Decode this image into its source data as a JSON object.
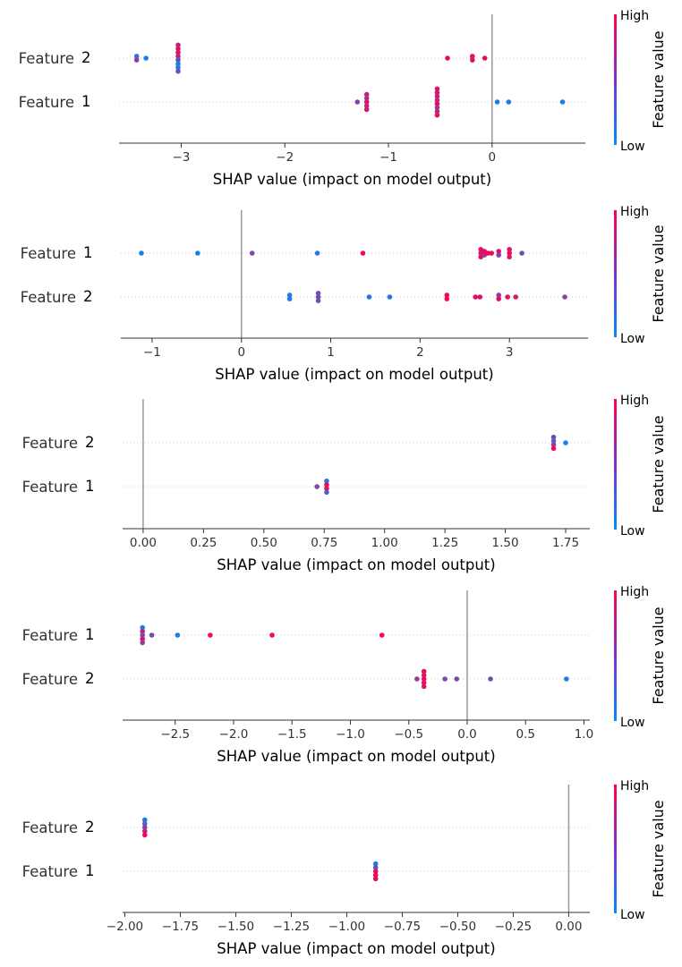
{
  "chart_data": [
    {
      "type": "scatter",
      "xlabel": "SHAP value (impact on model output)",
      "xlim": [
        -3.6,
        0.9
      ],
      "xticks": [
        -3,
        -2,
        -1,
        0
      ],
      "tick_labels": [
        "−3",
        "−2",
        "−1",
        "0"
      ],
      "rows": [
        {
          "name": "Feature",
          "index": "2",
          "points": [
            {
              "x": -3.43,
              "v": 0.2
            },
            {
              "x": -3.43,
              "v": 0.5
            },
            {
              "x": -3.34,
              "v": 0.1
            },
            {
              "x": -3.03,
              "v": 0.75
            },
            {
              "x": -3.03,
              "v": 0.85
            },
            {
              "x": -3.03,
              "v": 0.9
            },
            {
              "x": -3.03,
              "v": 0.7
            },
            {
              "x": -3.03,
              "v": 0.4
            },
            {
              "x": -3.03,
              "v": 0.15
            },
            {
              "x": -3.03,
              "v": 0.1
            },
            {
              "x": -3.03,
              "v": 0.45
            },
            {
              "x": -0.43,
              "v": 0.95
            },
            {
              "x": -0.19,
              "v": 0.9
            },
            {
              "x": -0.19,
              "v": 0.85
            },
            {
              "x": -0.07,
              "v": 0.9
            }
          ]
        },
        {
          "name": "Feature",
          "index": "1",
          "points": [
            {
              "x": -1.3,
              "v": 0.5
            },
            {
              "x": -1.21,
              "v": 0.8
            },
            {
              "x": -1.21,
              "v": 0.6
            },
            {
              "x": -1.21,
              "v": 0.9
            },
            {
              "x": -1.21,
              "v": 0.7
            },
            {
              "x": -1.21,
              "v": 0.85
            },
            {
              "x": -0.53,
              "v": 0.9
            },
            {
              "x": -0.53,
              "v": 0.8
            },
            {
              "x": -0.53,
              "v": 0.85
            },
            {
              "x": -0.53,
              "v": 0.7
            },
            {
              "x": -0.53,
              "v": 0.95
            },
            {
              "x": -0.53,
              "v": 0.6
            },
            {
              "x": -0.53,
              "v": 0.75
            },
            {
              "x": -0.53,
              "v": 0.88
            },
            {
              "x": 0.05,
              "v": 0.1
            },
            {
              "x": 0.16,
              "v": 0.12
            },
            {
              "x": 0.68,
              "v": 0.1
            }
          ]
        }
      ],
      "colorbar": {
        "high": "High",
        "low": "Low",
        "label": "Feature value"
      }
    },
    {
      "type": "scatter",
      "xlabel": "SHAP value (impact on model output)",
      "xlim": [
        -1.35,
        3.88
      ],
      "xticks": [
        -1,
        0,
        1,
        2,
        3
      ],
      "tick_labels": [
        "−1",
        "0",
        "1",
        "2",
        "3"
      ],
      "rows": [
        {
          "name": "Feature",
          "index": "1",
          "points": [
            {
              "x": -1.12,
              "v": 0.1
            },
            {
              "x": -0.49,
              "v": 0.1
            },
            {
              "x": 0.12,
              "v": 0.5
            },
            {
              "x": 0.85,
              "v": 0.15
            },
            {
              "x": 1.36,
              "v": 0.95
            },
            {
              "x": 2.68,
              "v": 0.9
            },
            {
              "x": 2.68,
              "v": 0.85
            },
            {
              "x": 2.72,
              "v": 0.95
            },
            {
              "x": 2.72,
              "v": 0.6
            },
            {
              "x": 2.74,
              "v": 0.9
            },
            {
              "x": 2.76,
              "v": 0.95
            },
            {
              "x": 2.68,
              "v": 0.85
            },
            {
              "x": 2.8,
              "v": 0.95
            },
            {
              "x": 2.88,
              "v": 0.9
            },
            {
              "x": 2.88,
              "v": 0.55
            },
            {
              "x": 3.0,
              "v": 0.9
            },
            {
              "x": 3.0,
              "v": 0.95
            },
            {
              "x": 3.0,
              "v": 0.85
            },
            {
              "x": 3.14,
              "v": 0.45
            }
          ]
        },
        {
          "name": "Feature",
          "index": "2",
          "points": [
            {
              "x": 0.54,
              "v": 0.1
            },
            {
              "x": 0.54,
              "v": 0.15
            },
            {
              "x": 0.86,
              "v": 0.4
            },
            {
              "x": 0.86,
              "v": 0.5
            },
            {
              "x": 0.86,
              "v": 0.35
            },
            {
              "x": 1.43,
              "v": 0.15
            },
            {
              "x": 1.66,
              "v": 0.15
            },
            {
              "x": 2.3,
              "v": 0.9
            },
            {
              "x": 2.3,
              "v": 0.95
            },
            {
              "x": 2.62,
              "v": 0.9
            },
            {
              "x": 2.67,
              "v": 0.85
            },
            {
              "x": 2.88,
              "v": 0.55
            },
            {
              "x": 2.88,
              "v": 0.9
            },
            {
              "x": 2.98,
              "v": 0.9
            },
            {
              "x": 3.07,
              "v": 0.85
            },
            {
              "x": 3.62,
              "v": 0.5
            }
          ]
        }
      ],
      "colorbar": {
        "high": "High",
        "low": "Low",
        "label": "Feature value"
      }
    },
    {
      "type": "scatter",
      "xlabel": "SHAP value (impact on model output)",
      "xlim": [
        -0.085,
        1.85
      ],
      "xticks": [
        0,
        0.25,
        0.5,
        0.75,
        1.0,
        1.25,
        1.5,
        1.75
      ],
      "tick_labels": [
        "0.00",
        "0.25",
        "0.50",
        "0.75",
        "1.00",
        "1.25",
        "1.50",
        "1.75"
      ],
      "rows": [
        {
          "name": "Feature",
          "index": "2",
          "points": [
            {
              "x": 1.7,
              "v": 0.45
            },
            {
              "x": 1.7,
              "v": 0.3
            },
            {
              "x": 1.7,
              "v": 0.6
            },
            {
              "x": 1.7,
              "v": 0.95
            },
            {
              "x": 1.75,
              "v": 0.1
            }
          ]
        },
        {
          "name": "Feature",
          "index": "1",
          "points": [
            {
              "x": 0.72,
              "v": 0.5
            },
            {
              "x": 0.76,
              "v": 0.15
            },
            {
              "x": 0.76,
              "v": 0.95
            },
            {
              "x": 0.76,
              "v": 0.85
            },
            {
              "x": 0.76,
              "v": 0.35
            }
          ]
        }
      ],
      "colorbar": {
        "high": "High",
        "low": "Low",
        "label": "Feature value"
      }
    },
    {
      "type": "scatter",
      "xlabel": "SHAP value (impact on model output)",
      "xlim": [
        -2.95,
        1.05
      ],
      "xticks": [
        -2.5,
        -2.0,
        -1.5,
        -1.0,
        -0.5,
        0.0,
        0.5,
        1.0
      ],
      "tick_labels": [
        "−2.5",
        "−2.0",
        "−1.5",
        "−1.0",
        "−0.5",
        "0.0",
        "0.5",
        "1.0"
      ],
      "rows": [
        {
          "name": "Feature",
          "index": "1",
          "points": [
            {
              "x": -2.78,
              "v": 0.1
            },
            {
              "x": -2.78,
              "v": 0.8
            },
            {
              "x": -2.78,
              "v": 0.4
            },
            {
              "x": -2.78,
              "v": 0.9
            },
            {
              "x": -2.78,
              "v": 0.6
            },
            {
              "x": -2.7,
              "v": 0.5
            },
            {
              "x": -2.48,
              "v": 0.1
            },
            {
              "x": -2.2,
              "v": 0.9
            },
            {
              "x": -1.67,
              "v": 0.9
            },
            {
              "x": -0.73,
              "v": 0.95
            }
          ]
        },
        {
          "name": "Feature",
          "index": "2",
          "points": [
            {
              "x": -0.43,
              "v": 0.6
            },
            {
              "x": -0.37,
              "v": 0.9
            },
            {
              "x": -0.37,
              "v": 0.85
            },
            {
              "x": -0.37,
              "v": 0.9
            },
            {
              "x": -0.37,
              "v": 0.95
            },
            {
              "x": -0.37,
              "v": 0.85
            },
            {
              "x": -0.19,
              "v": 0.5
            },
            {
              "x": -0.09,
              "v": 0.5
            },
            {
              "x": 0.2,
              "v": 0.45
            },
            {
              "x": 0.85,
              "v": 0.1
            }
          ]
        }
      ],
      "colorbar": {
        "high": "High",
        "low": "Low",
        "label": "Feature value"
      }
    },
    {
      "type": "scatter",
      "xlabel": "SHAP value (impact on model output)",
      "xlim": [
        -2.01,
        0.095
      ],
      "xticks": [
        -2.0,
        -1.75,
        -1.5,
        -1.25,
        -1.0,
        -0.75,
        -0.5,
        -0.25,
        0.0
      ],
      "tick_labels": [
        "−2.00",
        "−1.75",
        "−1.50",
        "−1.25",
        "−1.00",
        "−0.75",
        "−0.50",
        "−0.25",
        "0.00"
      ],
      "rows": [
        {
          "name": "Feature",
          "index": "2",
          "points": [
            {
              "x": -1.91,
              "v": 0.1
            },
            {
              "x": -1.91,
              "v": 0.35
            },
            {
              "x": -1.91,
              "v": 0.55
            },
            {
              "x": -1.91,
              "v": 0.75
            },
            {
              "x": -1.91,
              "v": 0.95
            }
          ]
        },
        {
          "name": "Feature",
          "index": "1",
          "points": [
            {
              "x": -0.87,
              "v": 0.1
            },
            {
              "x": -0.87,
              "v": 0.4
            },
            {
              "x": -0.87,
              "v": 0.9
            },
            {
              "x": -0.87,
              "v": 0.95
            },
            {
              "x": -0.87,
              "v": 0.9
            }
          ]
        }
      ],
      "colorbar": {
        "high": "High",
        "low": "Low",
        "label": "Feature value"
      }
    }
  ]
}
